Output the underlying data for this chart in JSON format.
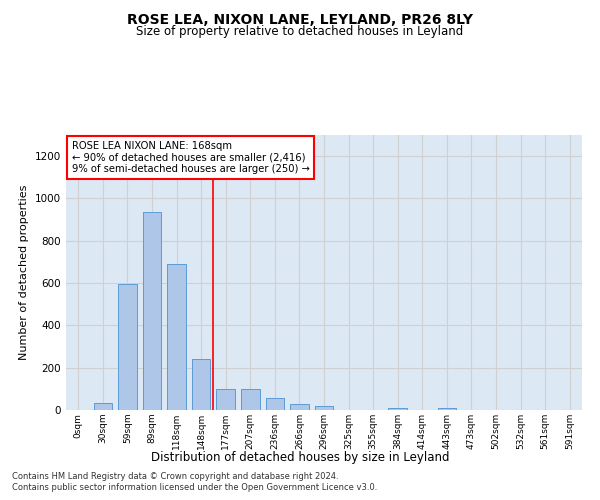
{
  "title1": "ROSE LEA, NIXON LANE, LEYLAND, PR26 8LY",
  "title2": "Size of property relative to detached houses in Leyland",
  "xlabel": "Distribution of detached houses by size in Leyland",
  "ylabel": "Number of detached properties",
  "annotation_line1": "ROSE LEA NIXON LANE: 168sqm",
  "annotation_line2": "← 90% of detached houses are smaller (2,416)",
  "annotation_line3": "9% of semi-detached houses are larger (250) →",
  "footer1": "Contains HM Land Registry data © Crown copyright and database right 2024.",
  "footer2": "Contains public sector information licensed under the Open Government Licence v3.0.",
  "bar_color": "#aec6e8",
  "bar_edge_color": "#5b9bd5",
  "vline_color": "red",
  "vline_x": 5.5,
  "categories": [
    "0sqm",
    "30sqm",
    "59sqm",
    "89sqm",
    "118sqm",
    "148sqm",
    "177sqm",
    "207sqm",
    "236sqm",
    "266sqm",
    "296sqm",
    "325sqm",
    "355sqm",
    "384sqm",
    "414sqm",
    "443sqm",
    "473sqm",
    "502sqm",
    "532sqm",
    "561sqm",
    "591sqm"
  ],
  "values": [
    0,
    35,
    595,
    935,
    690,
    240,
    100,
    100,
    55,
    27,
    20,
    0,
    0,
    10,
    0,
    10,
    0,
    0,
    0,
    0,
    0
  ],
  "ylim": [
    0,
    1300
  ],
  "yticks": [
    0,
    200,
    400,
    600,
    800,
    1000,
    1200
  ],
  "grid_color": "#d0d0d0",
  "background_color": "#dde8f5",
  "figsize": [
    6.0,
    5.0
  ],
  "dpi": 100
}
